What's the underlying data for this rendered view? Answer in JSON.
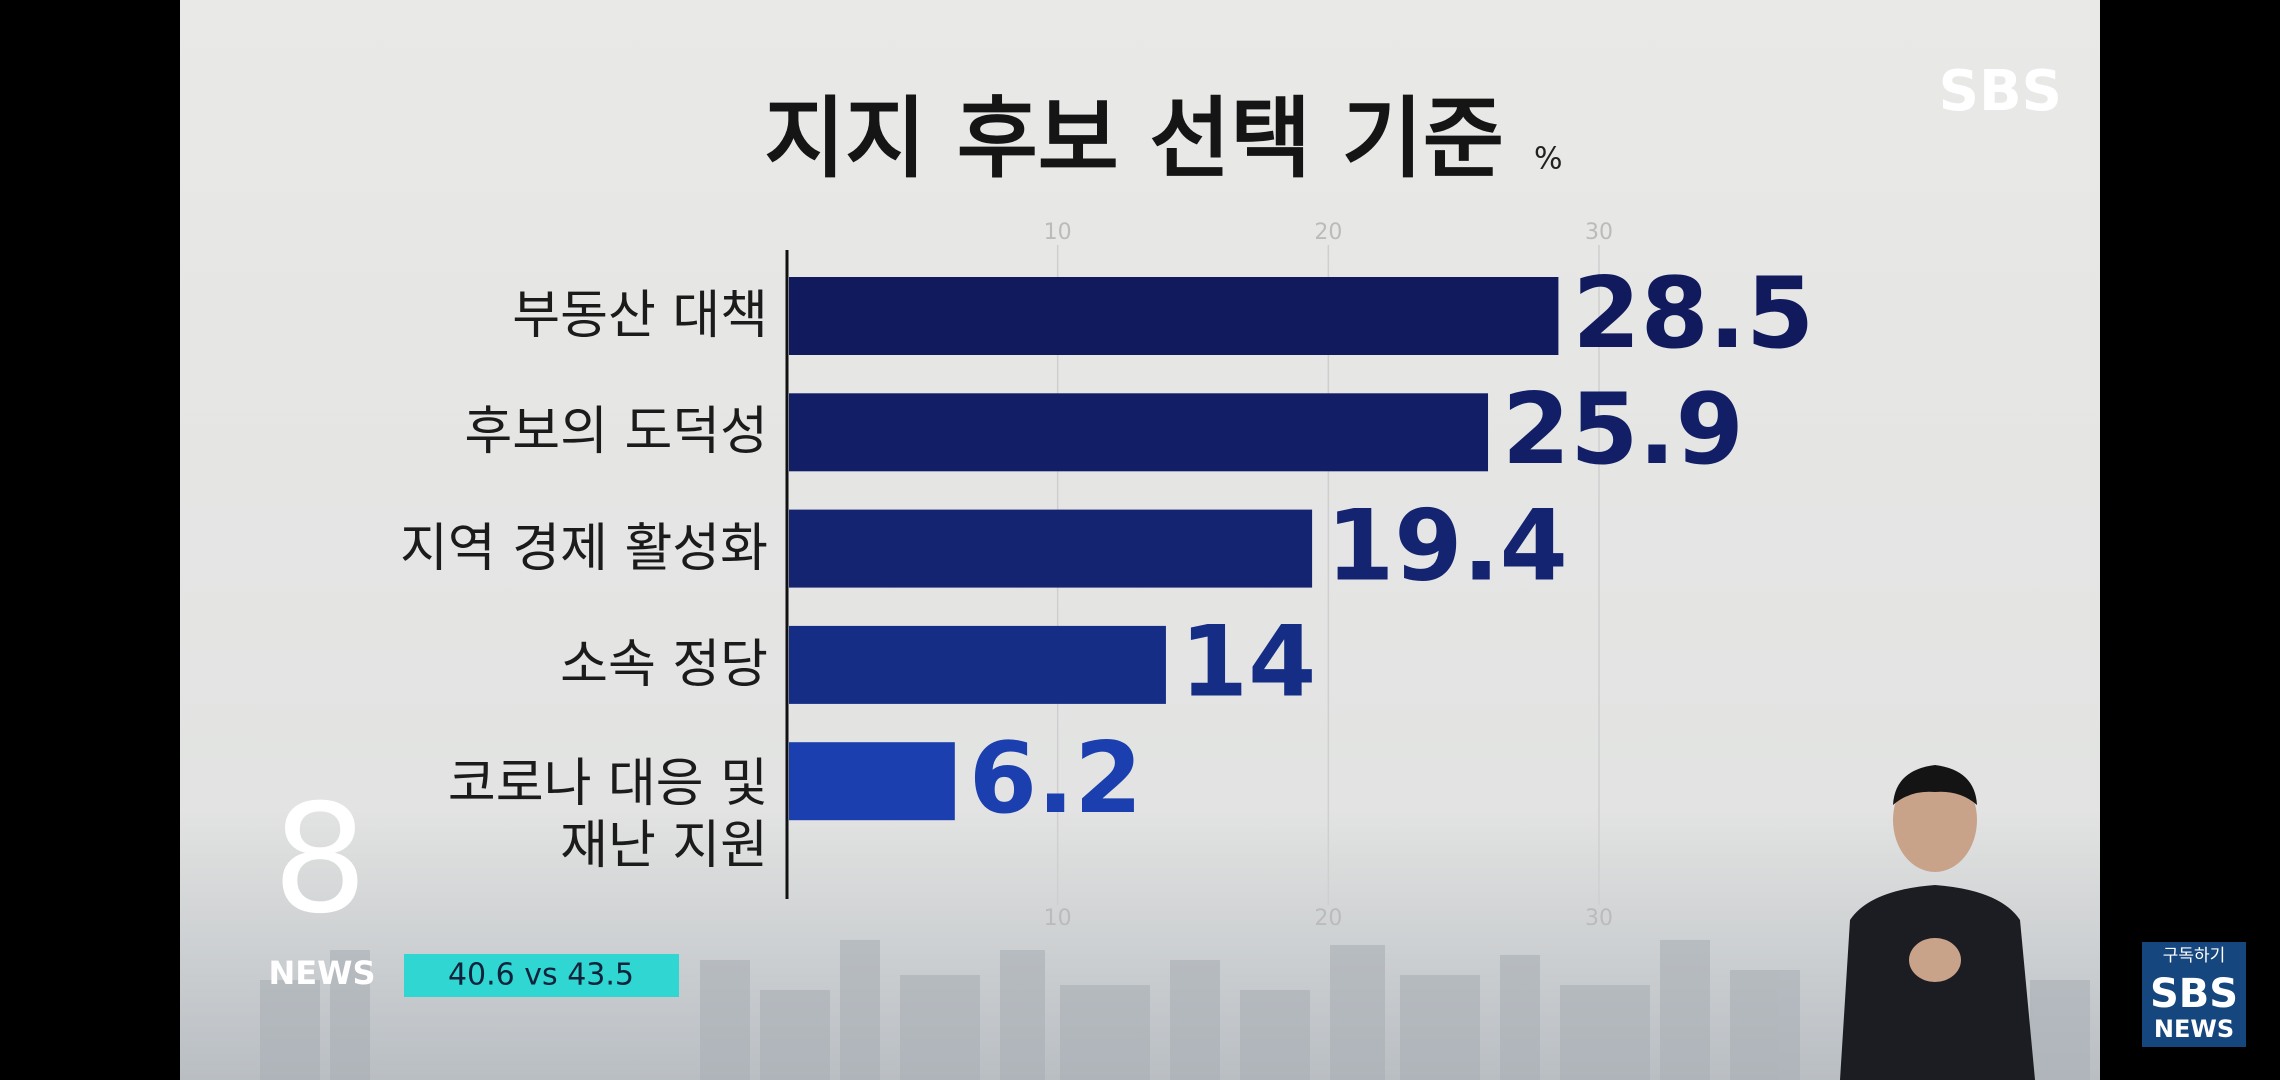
{
  "chart_data": {
    "type": "bar",
    "orientation": "horizontal",
    "title": "지지 후보 선택 기준",
    "unit": "%",
    "categories": [
      "부동산 대책",
      "후보의 도덕성",
      "지역 경제 활성화",
      "소속 정당",
      "코로나 대응 및\n재난 지원"
    ],
    "values": [
      28.5,
      25.9,
      19.4,
      14,
      6.2
    ],
    "colors": [
      "#101a5c",
      "#121f66",
      "#142470",
      "#162d86",
      "#1b3fae"
    ],
    "xlim": [
      0,
      30
    ],
    "xticks": [
      10,
      20,
      30
    ],
    "grid": true
  },
  "overlay": {
    "logo": "SBS",
    "program_number": "8",
    "program": "NEWS",
    "ticker": "40.6 vs 43.5",
    "subscribe": "구독하기",
    "subscribe_logo": "SBS",
    "subscribe_brand": "NEWS"
  }
}
